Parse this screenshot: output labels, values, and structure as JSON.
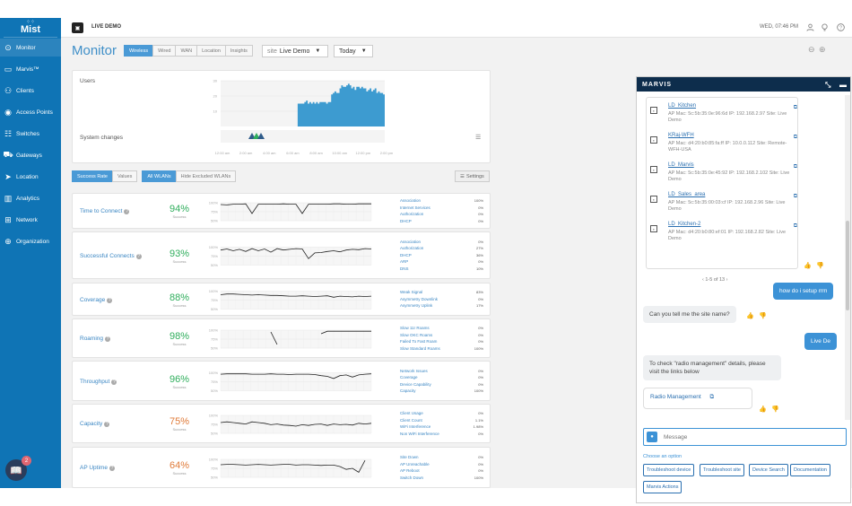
{
  "sidebar": {
    "logo_text": "Mist",
    "items": [
      {
        "label": "Monitor",
        "icon": "monitor-icon"
      },
      {
        "label": "Marvis™",
        "icon": "marvis-icon"
      },
      {
        "label": "Clients",
        "icon": "clients-icon"
      },
      {
        "label": "Access Points",
        "icon": "access-point-icon"
      },
      {
        "label": "Switches",
        "icon": "switch-icon"
      },
      {
        "label": "Gateways",
        "icon": "gateway-icon"
      },
      {
        "label": "Location",
        "icon": "location-icon"
      },
      {
        "label": "Analytics",
        "icon": "analytics-icon"
      },
      {
        "label": "Network",
        "icon": "network-icon"
      },
      {
        "label": "Organization",
        "icon": "organization-icon"
      }
    ],
    "help_badge": "2",
    "accent": "#0f74b5"
  },
  "topbar": {
    "org_name": "LIVE DEMO",
    "time": "WED, 07:46 PM"
  },
  "monitor": {
    "title": "Monitor",
    "tabs": [
      "Wireless",
      "Wired",
      "WAN",
      "Location",
      "Insights"
    ],
    "site_label": "site",
    "site_value": "Live Demo",
    "period": "Today",
    "users_label": "Users",
    "system_changes_label": "System changes",
    "y_ticks": [
      "30",
      "20",
      "10"
    ],
    "x_ticks": [
      "12:00 am",
      "2:00 am",
      "4:00 am",
      "6:00 am",
      "8:00 am",
      "10:00 am",
      "12:00 pm",
      "2:00 pm"
    ],
    "user_counts": [
      0,
      0,
      0,
      0,
      0,
      0,
      0,
      0,
      0,
      0,
      0,
      0,
      0,
      0,
      0,
      0,
      0,
      0,
      0,
      0,
      0,
      0,
      0,
      0,
      0,
      0,
      0,
      0,
      0,
      0,
      0,
      0,
      0,
      0,
      0,
      0,
      0,
      0,
      0,
      0,
      0,
      0,
      0,
      0,
      0,
      0,
      15,
      15,
      15,
      15,
      16,
      17,
      15,
      16,
      15,
      16,
      15,
      16,
      15,
      16,
      16,
      16,
      16,
      15,
      16,
      16,
      21,
      22,
      23,
      22,
      22,
      25,
      27,
      26,
      26,
      27,
      28,
      27,
      25,
      26,
      24,
      26,
      26,
      25,
      26,
      25,
      25,
      23,
      24,
      25,
      23,
      24,
      25,
      22,
      23,
      22,
      22,
      21
    ]
  },
  "sle": {
    "filters": {
      "success_rate": "Success Rate",
      "values": "Values",
      "all_wlans": "All WLANs",
      "hide_excluded": "Hide Excluded WLANs",
      "settings": "Settings"
    },
    "y_ticks": [
      "100%",
      "75%",
      "50%"
    ],
    "rows": [
      {
        "name": "Time to Connect",
        "pct": "94%",
        "sub": "Success",
        "color": "#2fae5c",
        "classifiers": [
          {
            "n": "Association",
            "v": "100%"
          },
          {
            "n": "Internet Services",
            "v": "0%"
          },
          {
            "n": "Authorization",
            "v": "0%"
          },
          {
            "n": "DHCP",
            "v": "0%"
          }
        ],
        "series": [
          95,
          94,
          96,
          96,
          97,
          70,
          96,
          96,
          96,
          96,
          97,
          96,
          96,
          70,
          96,
          96,
          96,
          96,
          97,
          97,
          96,
          96,
          97,
          97,
          97
        ]
      },
      {
        "name": "Successful Connects",
        "pct": "93%",
        "sub": "Success",
        "color": "#2fae5c",
        "classifiers": [
          {
            "n": "Association",
            "v": "0%"
          },
          {
            "n": "Authorization",
            "v": "27%"
          },
          {
            "n": "DHCP",
            "v": "36%"
          },
          {
            "n": "ARP",
            "v": "0%"
          },
          {
            "n": "DNS",
            "v": "10%"
          }
        ],
        "series": [
          92,
          95,
          90,
          94,
          88,
          96,
          90,
          95,
          86,
          96,
          92,
          94,
          96,
          95,
          68,
          84,
          85,
          88,
          90,
          87,
          92,
          94,
          93,
          96,
          95
        ]
      },
      {
        "name": "Coverage",
        "pct": "88%",
        "sub": "Success",
        "color": "#2fae5c",
        "classifiers": [
          {
            "n": "Weak Signal",
            "v": "83%"
          },
          {
            "n": "Asymmetry Downlink",
            "v": "0%"
          },
          {
            "n": "Asymmetry Uplink",
            "v": "17%"
          }
        ],
        "series": [
          90,
          92,
          92,
          91,
          90,
          89,
          90,
          89,
          88,
          88,
          87,
          86,
          86,
          87,
          86,
          85,
          86,
          87,
          83,
          86,
          85,
          84,
          86,
          85,
          86
        ]
      },
      {
        "name": "Roaming",
        "pct": "98%",
        "sub": "Success",
        "color": "#2fae5c",
        "classifiers": [
          {
            "n": "Slow 11r Roams",
            "v": "0%"
          },
          {
            "n": "Slow OKC Roams",
            "v": "0%"
          },
          {
            "n": "Failed To Fast Roam",
            "v": "0%"
          },
          {
            "n": "Slow Standard Roams",
            "v": "100%"
          }
        ],
        "series": [
          null,
          null,
          null,
          null,
          null,
          null,
          null,
          null,
          95,
          60,
          null,
          null,
          null,
          null,
          null,
          null,
          90,
          97,
          97,
          97,
          97,
          97,
          97,
          97,
          97
        ]
      },
      {
        "name": "Throughput",
        "pct": "96%",
        "sub": "Success",
        "color": "#2fae5c",
        "classifiers": [
          {
            "n": "Network Issues",
            "v": "0%"
          },
          {
            "n": "Coverage",
            "v": "0%"
          },
          {
            "n": "Device Capability",
            "v": "0%"
          },
          {
            "n": "Capacity",
            "v": "100%"
          }
        ],
        "series": [
          96,
          97,
          97,
          97,
          97,
          96,
          96,
          96,
          97,
          96,
          96,
          95,
          96,
          96,
          96,
          95,
          92,
          90,
          84,
          92,
          94,
          88,
          94,
          96,
          97
        ]
      },
      {
        "name": "Capacity",
        "pct": "75%",
        "sub": "Success",
        "color": "#e07b3a",
        "classifiers": [
          {
            "n": "Client Usage",
            "v": "0%"
          },
          {
            "n": "Client Count",
            "v": "1.1%"
          },
          {
            "n": "WiFi Interference",
            "v": "1.98%"
          },
          {
            "n": "Non WiFi Interference",
            "v": "0%"
          }
        ],
        "series": [
          80,
          82,
          80,
          78,
          76,
          82,
          80,
          78,
          74,
          76,
          73,
          72,
          70,
          74,
          72,
          75,
          76,
          72,
          76,
          74,
          75,
          73,
          78,
          76,
          78
        ]
      },
      {
        "name": "AP Uptime",
        "pct": "64%",
        "sub": "Success",
        "color": "#e07b3a",
        "classifiers": [
          {
            "n": "Site Down",
            "v": "0%"
          },
          {
            "n": "AP Unreachable",
            "v": "0%"
          },
          {
            "n": "AP Reboot",
            "v": "0%"
          },
          {
            "n": "Switch Down",
            "v": "100%"
          }
        ],
        "series": [
          85,
          86,
          86,
          85,
          84,
          85,
          86,
          85,
          84,
          85,
          86,
          86,
          84,
          85,
          85,
          84,
          83,
          84,
          84,
          80,
          72,
          75,
          64,
          97,
          null
        ]
      }
    ]
  },
  "marvis": {
    "title": "MARVIS",
    "devices": [
      {
        "name": "LD_Kitchen",
        "details": "AP Mac: 5c:5b:35:0e:96:6d IP: 192.168.2.97 Site: Live Demo"
      },
      {
        "name": "KRaj-WFH",
        "details": "AP Mac: d4:20:b0:85:fa:ff IP: 10.0.0.112 Site: Remote-WFH-USA"
      },
      {
        "name": "LD_Marvis",
        "details": "AP Mac: 5c:5b:35:0e:45:92 IP: 192.168.2.102 Site: Live Demo"
      },
      {
        "name": "LD_Sales_area",
        "details": "AP Mac: 5c:5b:35:00:03:cf IP: 192.168.2.96 Site: Live Demo"
      },
      {
        "name": "LD_Kitchen-2",
        "details": "AP Mac: d4:20:b0:80:ef:01 IP: 192.168.2.82 Site: Live Demo"
      }
    ],
    "pagination": "1-5 of 13",
    "messages": {
      "user1": "how do i setup rrm",
      "bot1": "Can you tell me the site name?",
      "user2": "Live De",
      "bot2": "To check \"radio management\" details, please visit the links below",
      "link": "Radio Management"
    },
    "input_placeholder": "Message",
    "options_title": "Choose an option",
    "options": [
      "Troubleshoot device",
      "Troubleshoot site",
      "Device Search",
      "Documentation",
      "Marvis Actions"
    ]
  }
}
